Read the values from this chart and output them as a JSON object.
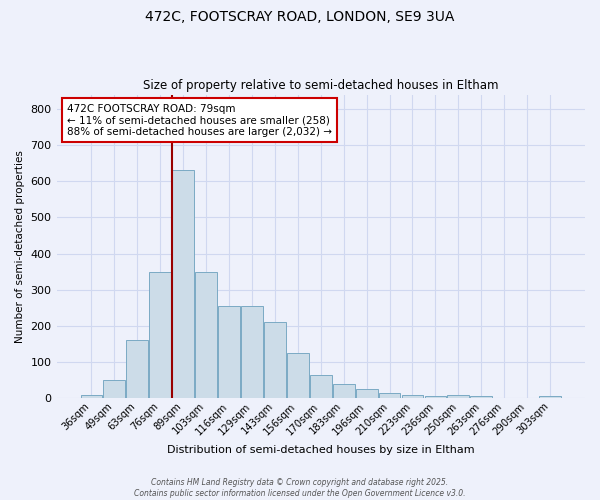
{
  "title1": "472C, FOOTSCRAY ROAD, LONDON, SE9 3UA",
  "title2": "Size of property relative to semi-detached houses in Eltham",
  "xlabel": "Distribution of semi-detached houses by size in Eltham",
  "ylabel": "Number of semi-detached properties",
  "bar_labels": [
    "36sqm",
    "49sqm",
    "63sqm",
    "76sqm",
    "89sqm",
    "103sqm",
    "116sqm",
    "129sqm",
    "143sqm",
    "156sqm",
    "170sqm",
    "183sqm",
    "196sqm",
    "210sqm",
    "223sqm",
    "236sqm",
    "250sqm",
    "263sqm",
    "276sqm",
    "290sqm",
    "303sqm"
  ],
  "bar_values": [
    10,
    50,
    160,
    350,
    630,
    350,
    255,
    255,
    210,
    125,
    65,
    40,
    25,
    15,
    10,
    5,
    8,
    5,
    2,
    2,
    5
  ],
  "bar_color": "#ccdce8",
  "bar_edge_color": "#7aaac4",
  "red_line_x": 3.5,
  "annotation_text": "472C FOOTSCRAY ROAD: 79sqm\n← 11% of semi-detached houses are smaller (258)\n88% of semi-detached houses are larger (2,032) →",
  "ylim": [
    0,
    840
  ],
  "yticks": [
    0,
    100,
    200,
    300,
    400,
    500,
    600,
    700,
    800
  ],
  "bg_color": "#eef1fb",
  "grid_color": "#d0d8f0",
  "footer_text": "Contains HM Land Registry data © Crown copyright and database right 2025.\nContains public sector information licensed under the Open Government Licence v3.0.",
  "red_line_color": "#990000",
  "ann_box_face": "#ffffff",
  "ann_box_edge": "#cc0000"
}
